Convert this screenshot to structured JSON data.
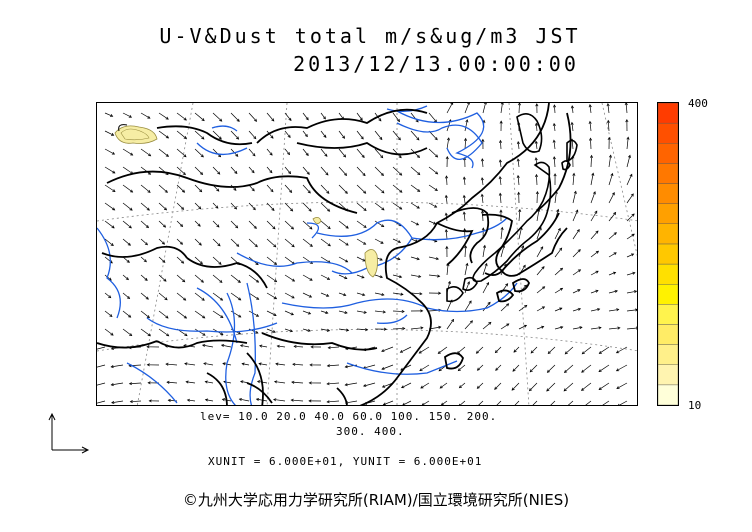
{
  "title": {
    "line1": "U-V&Dust total m/s&ug/m3 JST",
    "line2": "2013/12/13.00:00:00"
  },
  "colorbar": {
    "max_label": "400",
    "min_label": "10",
    "colors": [
      "#ffffd9",
      "#fff4b0",
      "#fff08a",
      "#ffec66",
      "#fff34d",
      "#fff200",
      "#ffe000",
      "#ffc800",
      "#ffb400",
      "#ffa000",
      "#ff8c00",
      "#ff7800",
      "#ff6400",
      "#ff5000",
      "#ff3c00"
    ]
  },
  "legend": {
    "levels_line1": "lev= 10.0 20.0 40.0 60.0 100. 150. 200.",
    "levels_line2": "300. 400.",
    "units": "XUNIT = 6.000E+01, YUNIT = 6.000E+01"
  },
  "copyright": "©九州大学応用力学研究所(RIAM)/国立環境研究所(NIES)",
  "colors": {
    "coast": "#000000",
    "river": "#1f5fe0",
    "dust_fill": "#f6eda4",
    "dust_edge": "#9a8e40"
  }
}
